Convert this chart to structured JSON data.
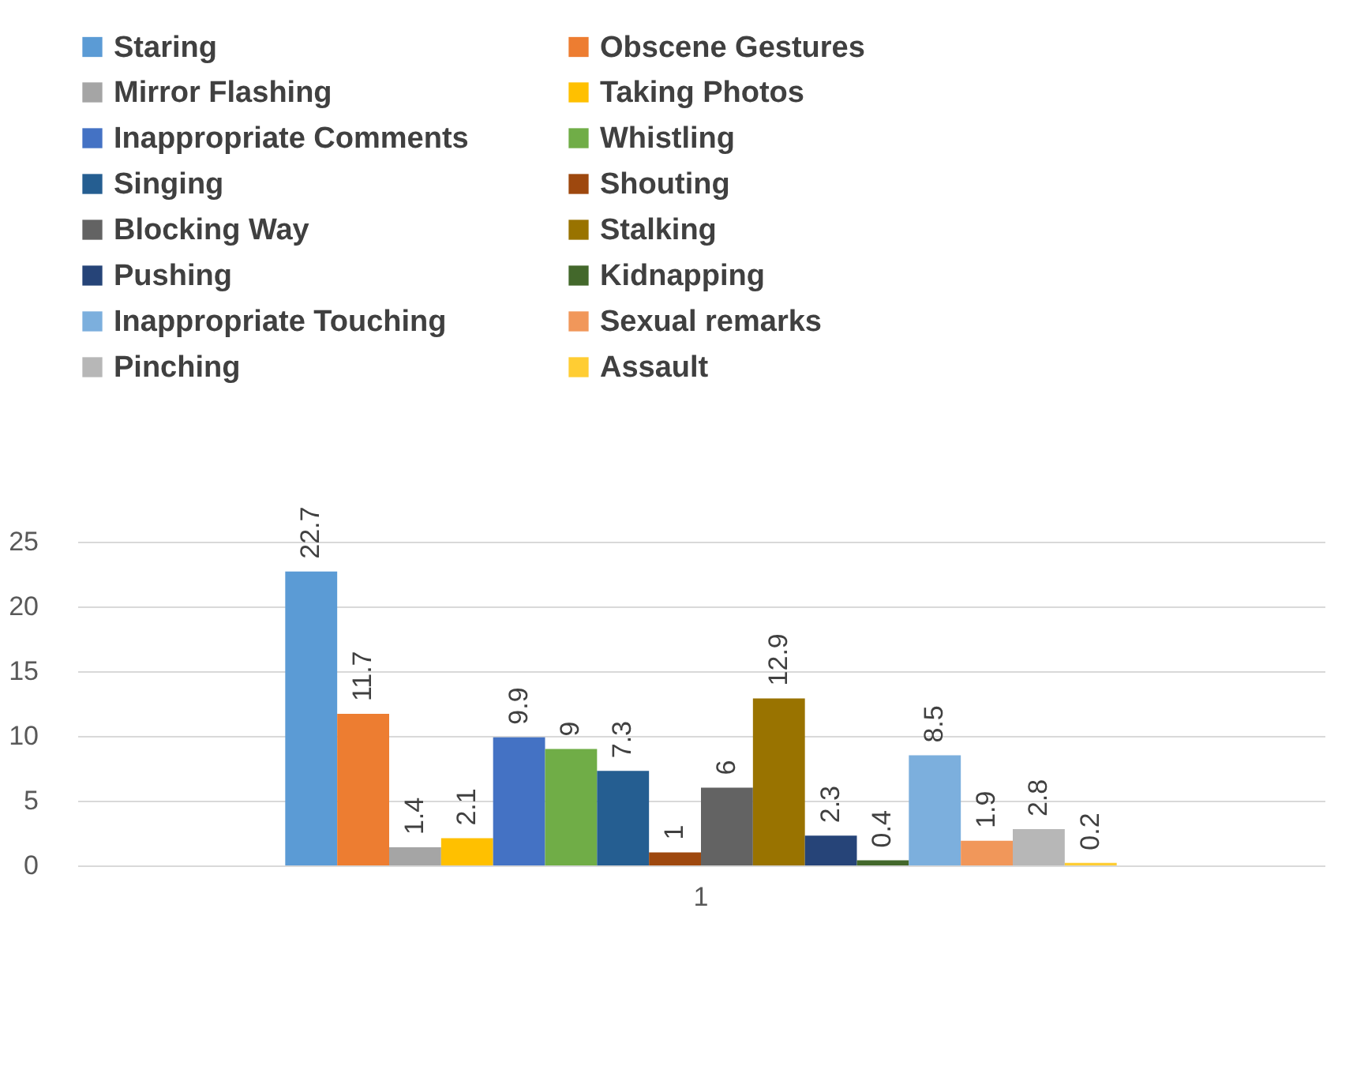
{
  "chart_data": {
    "type": "bar",
    "categories": [
      "1"
    ],
    "series": [
      {
        "name": "Staring",
        "color": "#5b9bd5",
        "values": [
          22.7
        ]
      },
      {
        "name": "Obscene Gestures",
        "color": "#ed7d31",
        "values": [
          11.7
        ]
      },
      {
        "name": "Mirror Flashing",
        "color": "#a5a5a5",
        "values": [
          1.4
        ]
      },
      {
        "name": "Taking Photos",
        "color": "#ffc000",
        "values": [
          2.1
        ]
      },
      {
        "name": "Inappropriate Comments",
        "color": "#4472c4",
        "values": [
          9.9
        ]
      },
      {
        "name": "Whistling",
        "color": "#70ad47",
        "values": [
          9
        ]
      },
      {
        "name": "Singing",
        "color": "#255e91",
        "values": [
          7.3
        ]
      },
      {
        "name": "Shouting",
        "color": "#9e480e",
        "values": [
          1
        ]
      },
      {
        "name": "Blocking Way",
        "color": "#636363",
        "values": [
          6
        ]
      },
      {
        "name": "Stalking",
        "color": "#997300",
        "values": [
          12.9
        ]
      },
      {
        "name": "Pushing",
        "color": "#264478",
        "values": [
          2.3
        ]
      },
      {
        "name": "Kidnapping",
        "color": "#43682b",
        "values": [
          0.4
        ]
      },
      {
        "name": "Inappropriate Touching",
        "color": "#7cafdd",
        "values": [
          8.5
        ]
      },
      {
        "name": "Sexual remarks",
        "color": "#f1975a",
        "values": [
          1.9
        ]
      },
      {
        "name": "Pinching",
        "color": "#b7b7b7",
        "values": [
          2.8
        ]
      },
      {
        "name": "Assault",
        "color": "#ffcd33",
        "values": [
          0.2
        ]
      }
    ],
    "ylim": [
      0,
      25
    ],
    "yticks": [
      0,
      5,
      10,
      15,
      20,
      25
    ],
    "grid": "y",
    "legend": "top",
    "data_labels": true
  }
}
